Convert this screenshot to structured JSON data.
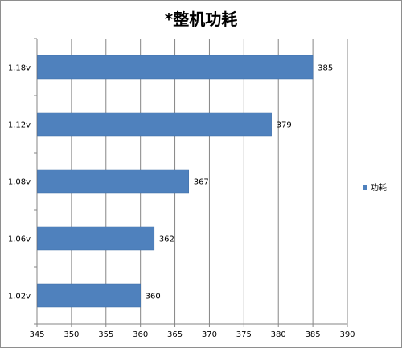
{
  "chart_data": {
    "type": "bar",
    "orientation": "horizontal",
    "title": "*整机功耗",
    "categories": [
      "1.18v",
      "1.12v",
      "1.08v",
      "1.06v",
      "1.02v"
    ],
    "series": [
      {
        "name": "功耗",
        "values": [
          385,
          379,
          367,
          362,
          360
        ],
        "color": "#4F81BD"
      }
    ],
    "xlim": [
      345,
      390
    ],
    "xticks": [
      345,
      350,
      355,
      360,
      365,
      370,
      375,
      380,
      385,
      390
    ],
    "grid": "vertical",
    "legend": "right"
  }
}
